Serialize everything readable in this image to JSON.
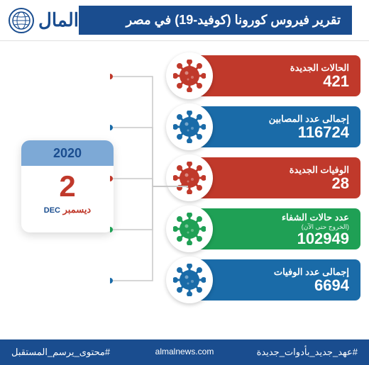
{
  "header": {
    "logo_text": "المال",
    "title": "تقرير فيروس كورونا (كوفيد-19) في مصر"
  },
  "calendar": {
    "year": "2020",
    "day": "2",
    "month_ar": "ديسمبر",
    "month_en": "DEC"
  },
  "stats": [
    {
      "label": "الحالات الجديدة",
      "value": "421",
      "bg_color": "#c0392b",
      "icon_color": "#c0392b"
    },
    {
      "label": "إجمالى عدد المصابين",
      "value": "116724",
      "bg_color": "#1a6ba8",
      "icon_color": "#1a6ba8"
    },
    {
      "label": "الوفيات الجديدة",
      "value": "28",
      "bg_color": "#c0392b",
      "icon_color": "#c0392b"
    },
    {
      "label": "عدد حالات الشفاء",
      "sublabel": "(الخروج حتى الآن)",
      "value": "102949",
      "bg_color": "#1fa055",
      "icon_color": "#1fa055"
    },
    {
      "label": "إجمالى عدد الوفيات",
      "value": "6694",
      "bg_color": "#1a6ba8",
      "icon_color": "#1a6ba8"
    }
  ],
  "footer": {
    "right_hashtag": "#محتوى_يرسم_المستقبل",
    "center_url": "almalnews.com",
    "left_hashtag": "#عهد_جديد_بأدوات_جديدة"
  },
  "colors": {
    "primary": "#1a4d8f",
    "red": "#c0392b",
    "blue": "#1a6ba8",
    "green": "#1fa055"
  }
}
